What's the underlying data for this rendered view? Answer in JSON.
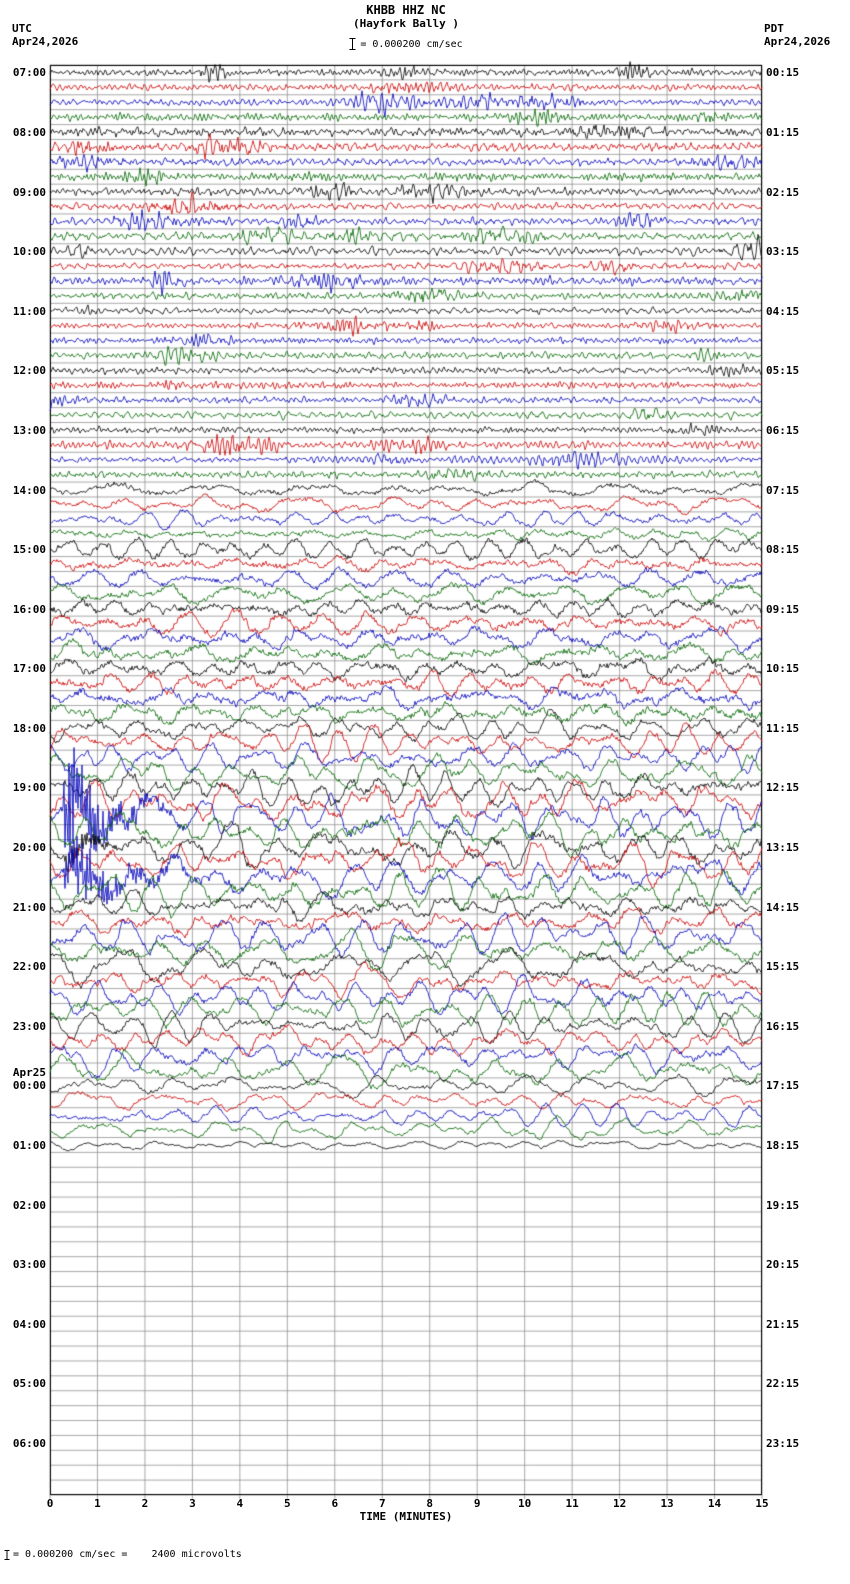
{
  "header": {
    "station_line": "KHBB HHZ NC",
    "location_line": "(Hayfork Bally )",
    "scale_text": "= 0.000200 cm/sec",
    "utc_label": "UTC",
    "utc_date": "Apr24,2026",
    "pdt_label": "PDT",
    "pdt_date": "Apr24,2026"
  },
  "x_axis": {
    "title": "TIME (MINUTES)",
    "ticks": [
      "0",
      "1",
      "2",
      "3",
      "4",
      "5",
      "6",
      "7",
      "8",
      "9",
      "10",
      "11",
      "12",
      "13",
      "14",
      "15"
    ]
  },
  "footer": {
    "scale_note": "= 0.000200 cm/sec =    2400 microvolts"
  },
  "chart_data": {
    "type": "line",
    "kind": "helicorder-seismogram",
    "station": "KHBB HHZ NC",
    "location": "Hayfork Bally",
    "minutes_per_line": 15,
    "traces_per_hour": 4,
    "x_range_minutes": [
      0,
      15
    ],
    "trace_colors": [
      "#000000",
      "#cc0000",
      "#0000bb",
      "#006600"
    ],
    "grid_color": "#8c8c8c",
    "rows": [
      {
        "utc": "07:00",
        "pdt": "00:15",
        "amp": 3.2,
        "style": "quiet"
      },
      {
        "utc": "08:00",
        "pdt": "01:15",
        "amp": 3.8,
        "style": "quiet"
      },
      {
        "utc": "09:00",
        "pdt": "02:15",
        "amp": 3.8,
        "style": "quiet"
      },
      {
        "utc": "10:00",
        "pdt": "03:15",
        "amp": 3.4,
        "style": "quiet"
      },
      {
        "utc": "11:00",
        "pdt": "04:15",
        "amp": 2.9,
        "style": "quiet"
      },
      {
        "utc": "12:00",
        "pdt": "05:15",
        "amp": 2.9,
        "style": "quiet"
      },
      {
        "utc": "13:00",
        "pdt": "06:15",
        "amp": 3.2,
        "style": "quiet"
      },
      {
        "utc": "14:00",
        "pdt": "07:15",
        "amp": 5.5,
        "style": "mixed"
      },
      {
        "utc": "15:00",
        "pdt": "08:15",
        "amp": 7.0,
        "style": "mixed"
      },
      {
        "utc": "16:00",
        "pdt": "09:15",
        "amp": 8.0,
        "style": "mixed"
      },
      {
        "utc": "17:00",
        "pdt": "10:15",
        "amp": 8.5,
        "style": "mixed"
      },
      {
        "utc": "18:00",
        "pdt": "11:15",
        "amp": 12.0,
        "style": "active"
      },
      {
        "utc": "19:00",
        "pdt": "12:15",
        "amp": 15.0,
        "style": "active"
      },
      {
        "utc": "20:00",
        "pdt": "13:15",
        "amp": 15.0,
        "style": "active"
      },
      {
        "utc": "21:00",
        "pdt": "14:15",
        "amp": 13.0,
        "style": "active"
      },
      {
        "utc": "22:00",
        "pdt": "15:15",
        "amp": 12.0,
        "style": "active"
      },
      {
        "utc": "23:00",
        "pdt": "16:15",
        "amp": 11.0,
        "style": "active"
      },
      {
        "utc": "00:00",
        "utc_extra": "Apr25",
        "pdt": "17:15",
        "amp": 7.5,
        "style": "active"
      },
      {
        "utc": "01:00",
        "pdt": "18:15",
        "amp": 4.0,
        "style": "active",
        "present": [
          1,
          0,
          0,
          0
        ]
      },
      {
        "utc": "02:00",
        "pdt": "19:15",
        "amp": 0,
        "style": "flat",
        "present": [
          0,
          0,
          0,
          0
        ]
      },
      {
        "utc": "03:00",
        "pdt": "20:15",
        "amp": 0,
        "style": "flat",
        "present": [
          0,
          0,
          0,
          0
        ]
      },
      {
        "utc": "04:00",
        "pdt": "21:15",
        "amp": 0,
        "style": "flat",
        "present": [
          0,
          0,
          0,
          0
        ]
      },
      {
        "utc": "05:00",
        "pdt": "22:15",
        "amp": 0,
        "style": "flat",
        "present": [
          0,
          0,
          0,
          0
        ]
      },
      {
        "utc": "06:00",
        "pdt": "23:15",
        "amp": 0,
        "style": "flat",
        "present": [
          0,
          0,
          0,
          0
        ]
      }
    ],
    "events": [
      {
        "row": 12,
        "trace": 2,
        "x0": 0.015,
        "x1": 0.13,
        "amp": 48
      },
      {
        "row": 13,
        "trace": 0,
        "x0": 0.02,
        "x1": 0.09,
        "amp": 18
      },
      {
        "row": 13,
        "trace": 2,
        "x0": 0.015,
        "x1": 0.18,
        "amp": 26
      }
    ]
  }
}
